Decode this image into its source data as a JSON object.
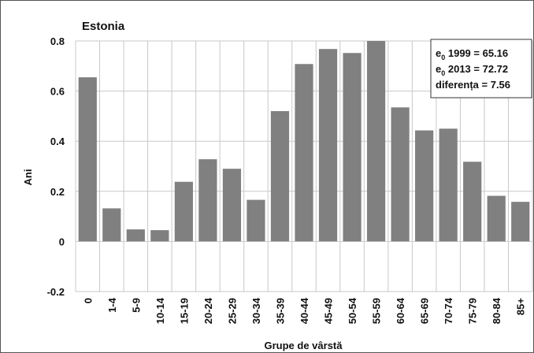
{
  "chart_data": {
    "type": "bar",
    "title": "Estonia",
    "xlabel": "Grupe de vârstă",
    "ylabel": "Ani",
    "ylim": [
      -0.2,
      0.8
    ],
    "yticks": [
      "-0.2",
      "0",
      "0.2",
      "0.4",
      "0.6",
      "0.8"
    ],
    "grid": true,
    "categories": [
      "0",
      "1-4",
      "5-9",
      "10-14",
      "15-19",
      "20-24",
      "25-29",
      "30-34",
      "35-39",
      "40-44",
      "45-49",
      "50-54",
      "55-59",
      "60-64",
      "65-69",
      "70-74",
      "75-79",
      "80-84",
      "85+"
    ],
    "values": [
      0.655,
      0.132,
      0.048,
      0.045,
      0.238,
      0.328,
      0.29,
      0.166,
      0.52,
      0.708,
      0.768,
      0.752,
      0.81,
      0.535,
      0.443,
      0.45,
      0.318,
      0.182,
      0.158
    ],
    "bar_color": "#808080",
    "annotation": {
      "placement": "top-right",
      "lines": [
        {
          "pre": "e",
          "sub": "0",
          "text": " 1999 = 65.16"
        },
        {
          "pre": "e",
          "sub": "0",
          "text": " 2013 = 72.72"
        },
        {
          "pre": "",
          "sub": "",
          "text": "diferența = 7.56"
        }
      ]
    }
  }
}
